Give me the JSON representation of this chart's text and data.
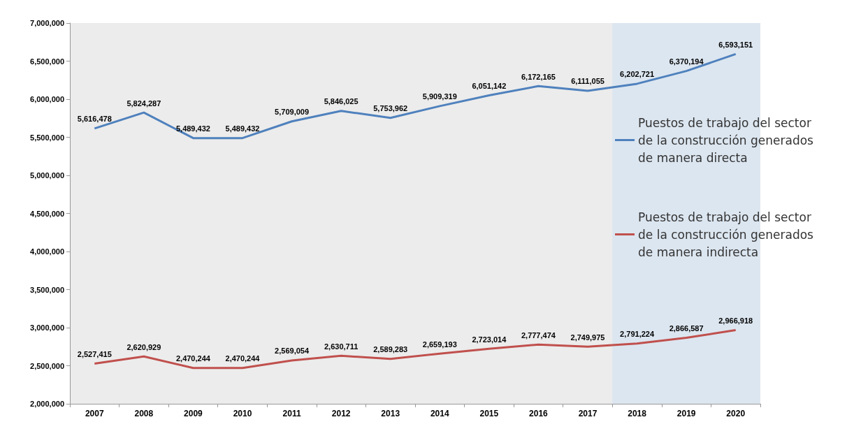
{
  "chart_data": {
    "type": "line",
    "categories": [
      "2007",
      "2008",
      "2009",
      "2010",
      "2011",
      "2012",
      "2013",
      "2014",
      "2015",
      "2016",
      "2017",
      "2018",
      "2019",
      "2020"
    ],
    "series": [
      {
        "name": "Puestos de trabajo del sector de la construcción generados de manera directa",
        "color": "#4f81bd",
        "values": [
          5616478,
          5824287,
          5489432,
          5489432,
          5709009,
          5846025,
          5753962,
          5909319,
          6051142,
          6172165,
          6111055,
          6202721,
          6370194,
          6593151
        ],
        "value_labels": [
          "5,616,478",
          "5,824,287",
          "5,489,432",
          "5,489,432",
          "5,709,009",
          "5,846,025",
          "5,753,962",
          "5,909,319",
          "6,051,142",
          "6,172,165",
          "6,111,055",
          "6,202,721",
          "6,370,194",
          "6,593,151"
        ]
      },
      {
        "name": "Puestos de trabajo del sector de la construcción generados de manera indirecta",
        "color": "#c0504d",
        "values": [
          2527415,
          2620929,
          2470244,
          2470244,
          2569054,
          2630711,
          2589283,
          2659193,
          2723014,
          2777474,
          2749975,
          2791224,
          2866587,
          2966918
        ],
        "value_labels": [
          "2,527,415",
          "2,620,929",
          "2,470,244",
          "2,470,244",
          "2,569,054",
          "2,630,711",
          "2,589,283",
          "2,659,193",
          "2,723,014",
          "2,777,474",
          "2,749,975",
          "2,791,224",
          "2,866,587",
          "2,966,918"
        ]
      }
    ],
    "ylim": [
      2000000,
      7000000
    ],
    "yticks": [
      {
        "value": 2000000,
        "label": "2,000,000"
      },
      {
        "value": 2500000,
        "label": "2,500,000"
      },
      {
        "value": 3000000,
        "label": "3,000,000"
      },
      {
        "value": 3500000,
        "label": "3,500,000"
      },
      {
        "value": 4000000,
        "label": "4,000,000"
      },
      {
        "value": 4500000,
        "label": "4,500,000"
      },
      {
        "value": 5000000,
        "label": "5,000,000"
      },
      {
        "value": 5500000,
        "label": "5,500,000"
      },
      {
        "value": 6000000,
        "label": "6,000,000"
      },
      {
        "value": 6500000,
        "label": "6,500,000"
      },
      {
        "value": 7000000,
        "label": "7,000,000"
      }
    ],
    "bands": [
      {
        "axis": "x",
        "from": "2018",
        "to": "2020",
        "color": "#dce6f0"
      }
    ],
    "grid": false,
    "legend": "right",
    "marker": "none",
    "line_style": "solid"
  }
}
